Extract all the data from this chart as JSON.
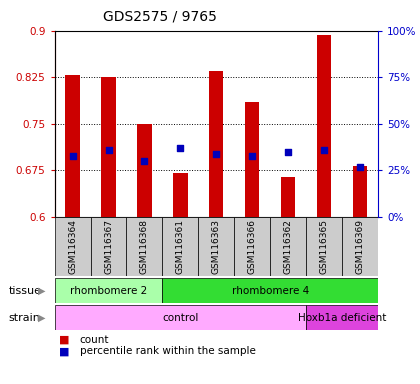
{
  "title": "GDS2575 / 9765",
  "samples": [
    "GSM116364",
    "GSM116367",
    "GSM116368",
    "GSM116361",
    "GSM116363",
    "GSM116366",
    "GSM116362",
    "GSM116365",
    "GSM116369"
  ],
  "count_values": [
    0.828,
    0.826,
    0.75,
    0.671,
    0.835,
    0.785,
    0.665,
    0.893,
    0.682
  ],
  "percentile_values": [
    33,
    36,
    30,
    37,
    34,
    33,
    35,
    36,
    27
  ],
  "ylim_left": [
    0.6,
    0.9
  ],
  "ylim_right": [
    0,
    100
  ],
  "yticks_left": [
    0.6,
    0.675,
    0.75,
    0.825,
    0.9
  ],
  "yticks_right": [
    0,
    25,
    50,
    75,
    100
  ],
  "ytick_labels_left": [
    "0.6",
    "0.675",
    "0.75",
    "0.825",
    "0.9"
  ],
  "ytick_labels_right": [
    "0%",
    "25%",
    "50%",
    "75%",
    "100%"
  ],
  "bar_color": "#cc0000",
  "dot_color": "#0000bb",
  "bar_bottom": 0.6,
  "tissue_labels": [
    {
      "text": "rhombomere 2",
      "start": 0,
      "end": 2,
      "color": "#aaffaa"
    },
    {
      "text": "rhombomere 4",
      "start": 3,
      "end": 8,
      "color": "#33dd33"
    }
  ],
  "strain_labels": [
    {
      "text": "control",
      "start": 0,
      "end": 6,
      "color": "#ffaaff"
    },
    {
      "text": "Hoxb1a deficient",
      "start": 7,
      "end": 8,
      "color": "#dd44dd"
    }
  ],
  "tissue_row_label": "tissue",
  "strain_row_label": "strain",
  "legend_count": "count",
  "legend_percentile": "percentile rank within the sample",
  "background_color": "#ffffff",
  "plot_bg_color": "#ffffff",
  "label_bg_color": "#cccccc"
}
